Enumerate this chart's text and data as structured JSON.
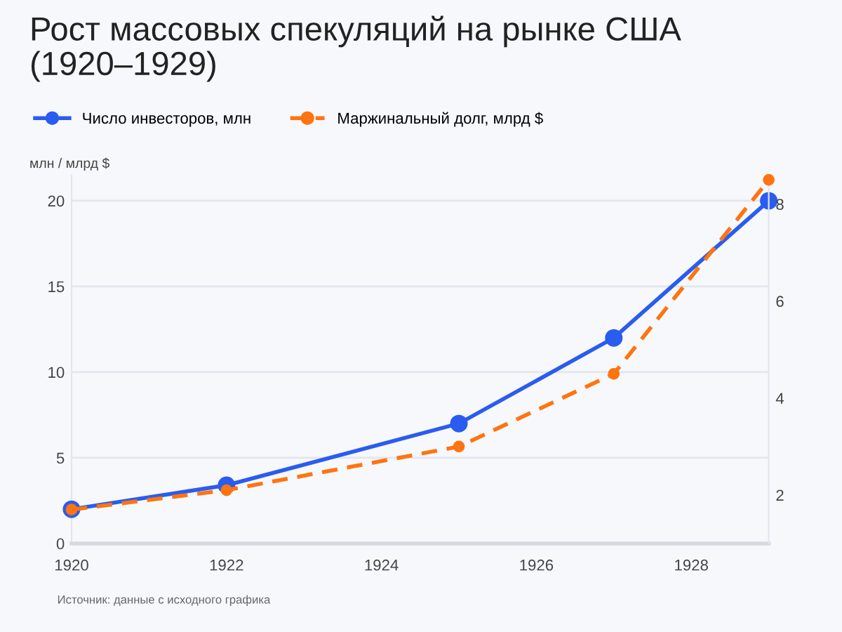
{
  "chart_data": {
    "type": "line",
    "title": "Рост массовых спекуляций на рынке США\n(1920–1929)",
    "ylabel": "млн / млрд $",
    "x": [
      1920,
      1922,
      1925,
      1927,
      1929
    ],
    "series": [
      {
        "name": "Число инвесторов, млн",
        "color": "#2a5cf0",
        "values": [
          2,
          3.4,
          7,
          12,
          20
        ],
        "line_style": "solid"
      },
      {
        "name": "Маржинальный долг, млрд $",
        "color": "#ff7410",
        "values": [
          1.7,
          2.1,
          3.0,
          4.5,
          8.5
        ],
        "axis": "y2",
        "line_style": "dashed"
      }
    ],
    "xlim": [
      1920,
      1929
    ],
    "xticks": [
      1920,
      1922,
      1924,
      1926,
      1928
    ],
    "ylim": [
      0,
      21.5
    ],
    "yticks": [
      0,
      5,
      10,
      15,
      20
    ],
    "y2lim": [
      1,
      8.6
    ],
    "y2ticks": [
      2,
      4,
      6,
      8
    ],
    "grid": "y",
    "legend": "top left",
    "marker": "circle",
    "annotations": [
      "Источник: данные с исходного графика"
    ]
  }
}
